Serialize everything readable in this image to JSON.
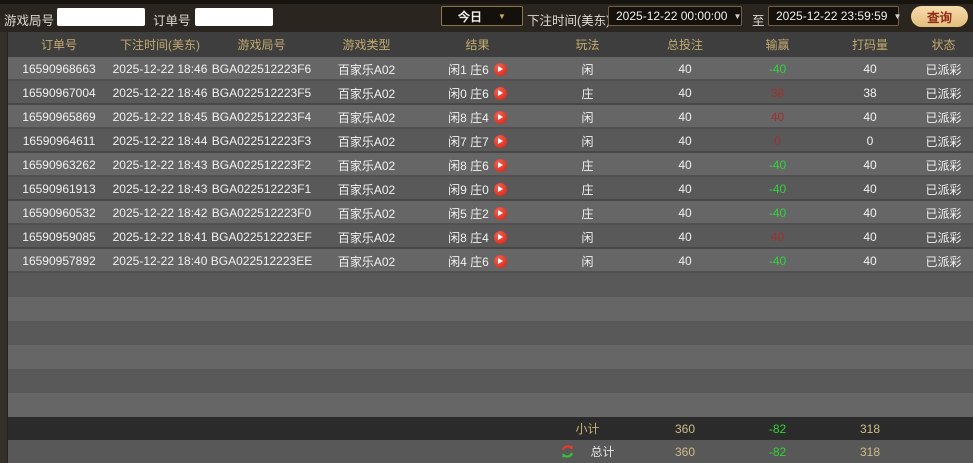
{
  "toolbar": {
    "game_round_label": "游戏局号",
    "game_round_value": "",
    "order_label": "订单号",
    "order_value": "",
    "range_select": "今日",
    "bet_time_label": "下注时间(美东)",
    "start_time": "2025-12-22 00:00:00",
    "to_label": "至",
    "end_time": "2025-12-22 23:59:59",
    "search_label": "查询"
  },
  "table": {
    "columns": [
      "订单号",
      "下注时间(美东)",
      "游戏局号",
      "游戏类型",
      "结果",
      "玩法",
      "总投注",
      "输赢",
      "打码量",
      "状态"
    ],
    "rows": [
      {
        "order_id": "16590968663",
        "bet_time": "2025-12-22 18:46",
        "game_round": "BGA022512223F6",
        "game_type": "百家乐A02",
        "result": "闲1 庄6",
        "play": "闲",
        "total_bet": "40",
        "win_loss": "-40",
        "rolling": "40",
        "status": "已派彩"
      },
      {
        "order_id": "16590967004",
        "bet_time": "2025-12-22 18:46",
        "game_round": "BGA022512223F5",
        "game_type": "百家乐A02",
        "result": "闲0 庄6",
        "play": "庄",
        "total_bet": "40",
        "win_loss": "38",
        "rolling": "38",
        "status": "已派彩"
      },
      {
        "order_id": "16590965869",
        "bet_time": "2025-12-22 18:45",
        "game_round": "BGA022512223F4",
        "game_type": "百家乐A02",
        "result": "闲8 庄4",
        "play": "闲",
        "total_bet": "40",
        "win_loss": "40",
        "rolling": "40",
        "status": "已派彩"
      },
      {
        "order_id": "16590964611",
        "bet_time": "2025-12-22 18:44",
        "game_round": "BGA022512223F3",
        "game_type": "百家乐A02",
        "result": "闲7 庄7",
        "play": "闲",
        "total_bet": "40",
        "win_loss": "0",
        "rolling": "0",
        "status": "已派彩"
      },
      {
        "order_id": "16590963262",
        "bet_time": "2025-12-22 18:43",
        "game_round": "BGA022512223F2",
        "game_type": "百家乐A02",
        "result": "闲8 庄6",
        "play": "庄",
        "total_bet": "40",
        "win_loss": "-40",
        "rolling": "40",
        "status": "已派彩"
      },
      {
        "order_id": "16590961913",
        "bet_time": "2025-12-22 18:43",
        "game_round": "BGA022512223F1",
        "game_type": "百家乐A02",
        "result": "闲9 庄0",
        "play": "庄",
        "total_bet": "40",
        "win_loss": "-40",
        "rolling": "40",
        "status": "已派彩"
      },
      {
        "order_id": "16590960532",
        "bet_time": "2025-12-22 18:42",
        "game_round": "BGA022512223F0",
        "game_type": "百家乐A02",
        "result": "闲5 庄2",
        "play": "庄",
        "total_bet": "40",
        "win_loss": "-40",
        "rolling": "40",
        "status": "已派彩"
      },
      {
        "order_id": "16590959085",
        "bet_time": "2025-12-22 18:41",
        "game_round": "BGA022512223EF",
        "game_type": "百家乐A02",
        "result": "闲8 庄4",
        "play": "闲",
        "total_bet": "40",
        "win_loss": "40",
        "rolling": "40",
        "status": "已派彩"
      },
      {
        "order_id": "16590957892",
        "bet_time": "2025-12-22 18:40",
        "game_round": "BGA022512223EE",
        "game_type": "百家乐A02",
        "result": "闲4 庄6",
        "play": "闲",
        "total_bet": "40",
        "win_loss": "-40",
        "rolling": "40",
        "status": "已派彩"
      }
    ]
  },
  "footer": {
    "subtotal_label": "小计",
    "subtotal": {
      "total_bet": "360",
      "win_loss": "-82",
      "rolling": "318"
    },
    "total_label": "总计",
    "total": {
      "total_bet": "360",
      "win_loss": "-82",
      "rolling": "318"
    }
  },
  "icons": {
    "dropdown_arrow": "▼",
    "play_icon": "play-icon",
    "refresh_icon": "refresh-icon"
  },
  "colors": {
    "header_gold": "#c3aa70",
    "win_negative_green": "#2fd337",
    "win_positive_red": "#a03030",
    "search_button_bg": "#eac98f",
    "search_button_text": "#8f2d1a",
    "play_button_red": "#d61f10"
  }
}
